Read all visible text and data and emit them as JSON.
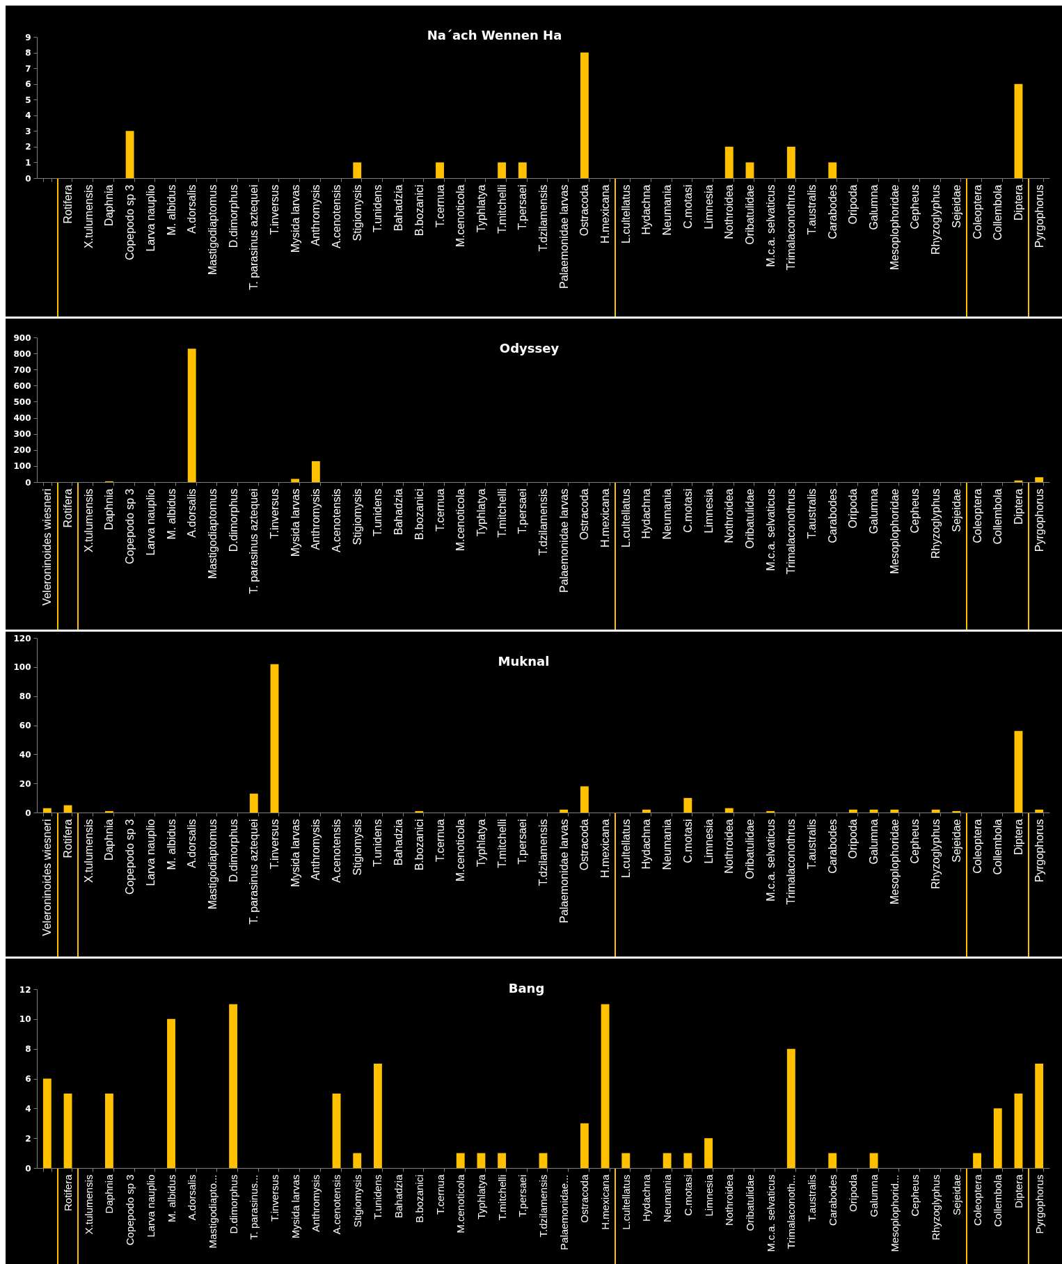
{
  "chart_data": [
    {
      "type": "bar",
      "title": "Na´ach Wennen Ha",
      "categories": [
        null,
        "Rotifera",
        "X.tulumensis",
        "Daphnia",
        "Copepodo sp 3",
        "Larva nauplio",
        "M. albidus",
        "A.dorsalis",
        "Mastigodiaptomus",
        "D.dimorphus",
        "T. parasinus aztequei",
        "T.inversus",
        "Mysida larvas",
        "Anthromysis",
        "A.cenotensis",
        "Stigiomysis",
        "T.unidens",
        "Bahadzia",
        "B.bozanici",
        "T.cernua",
        "M.cenoticola",
        "Typhlatya",
        "T.mitchelli",
        "T.persaei",
        "T.dzilamensis",
        "Palaemonidae larvas",
        "Ostracoda",
        "H.mexicana",
        "L.cultellatus",
        "Hydachna",
        "Neumania",
        "C.motasi",
        "Limnesia",
        "Nothroidea",
        "Oribatulidae",
        "M.c.a. selvaticus",
        "Trimalaconothrus",
        "T.australis",
        "Carabodes",
        "Oripoda",
        "Galumna",
        "Mesoplophoridae",
        "Cepheus",
        "Rhyzoglyphus",
        "Sejeidae",
        "Coleoptera",
        "Collembola",
        "Diptera",
        "Pyrgophorus"
      ],
      "values": [
        0,
        0,
        0,
        0,
        3,
        0,
        0,
        0,
        0,
        0,
        0,
        0,
        0,
        0,
        0,
        1,
        0,
        0,
        0,
        1,
        0,
        0,
        1,
        1,
        0,
        0,
        8,
        0,
        0,
        0,
        0,
        0,
        0,
        2,
        1,
        0,
        2,
        0,
        1,
        0,
        0,
        0,
        0,
        0,
        0,
        0,
        0,
        6,
        0
      ],
      "color": "#ffc000",
      "ylim": [
        0,
        9
      ],
      "yticks": [
        0,
        1,
        2,
        3,
        4,
        5,
        6,
        7,
        8,
        9
      ]
    },
    {
      "type": "bar",
      "title": "Odyssey",
      "categories": [
        "Veleroninoides wiesneri",
        "Rotifera",
        "X.tulumensis",
        "Daphnia",
        "Copepodo sp 3",
        "Larva nauplio",
        "M. albidus",
        "A.dorsalis",
        "Mastigodiaptomus",
        "D.dimorphus",
        "T. parasinus aztequei",
        "T.inversus",
        "Mysida larvas",
        "Anthromysis",
        "A.cenotensis",
        "Stigiomysis",
        "T.unidens",
        "Bahadzia",
        "B.bozanici",
        "T.cernua",
        "M.cenoticola",
        "Typhlatya",
        "T.mitchelli",
        "T.persaei",
        "T.dzilamensis",
        "Palaemonidae larvas",
        "Ostracoda",
        "H.mexicana",
        "L.cultellatus",
        "Hydachna",
        "Neumania",
        "C.motasi",
        "Limnesia",
        "Nothroidea",
        "Oribatulidae",
        "M.c.a. selvaticus",
        "Trimalaconothrus",
        "T.australis",
        "Carabodes",
        "Oripoda",
        "Galumna",
        "Mesoplophoridae",
        "Cepheus",
        "Rhyzoglyphus",
        "Sejeidae",
        "Coleoptera",
        "Collembola",
        "Diptera",
        "Pyrgophorus"
      ],
      "values": [
        0,
        0,
        0,
        5,
        0,
        0,
        0,
        830,
        0,
        0,
        0,
        0,
        20,
        130,
        0,
        0,
        0,
        0,
        0,
        0,
        0,
        0,
        0,
        0,
        0,
        0,
        0,
        0,
        0,
        0,
        0,
        0,
        0,
        0,
        0,
        0,
        0,
        0,
        0,
        0,
        0,
        0,
        0,
        0,
        0,
        0,
        0,
        10,
        30
      ],
      "color": "#ffc000",
      "ylim": [
        0,
        900
      ],
      "yticks": [
        0,
        100,
        200,
        300,
        400,
        500,
        600,
        700,
        800,
        900
      ]
    },
    {
      "type": "bar",
      "title": "Muknal",
      "categories": [
        "Veleroninoides wiesneri",
        "Rotifera",
        "X.tulumensis",
        "Daphnia",
        "Copepodo sp 3",
        "Larva nauplio",
        "M. albidus",
        "A.dorsalis",
        "Mastigodiaptomus",
        "D.dimorphus",
        "T. parasinus aztequei",
        "T.inversus",
        "Mysida larvas",
        "Anthromysis",
        "A.cenotensis",
        "Stigiomysis",
        "T.unidens",
        "Bahadzia",
        "B.bozanici",
        "T.cernua",
        "M.cenoticola",
        "Typhlatya",
        "T.mitchelli",
        "T.persaei",
        "T.dzilamensis",
        "Palaemonidae larvas",
        "Ostracoda",
        "H.mexicana",
        "L.cultellatus",
        "Hydachna",
        "Neumania",
        "C.motasi",
        "Limnesia",
        "Nothroidea",
        "Oribatulidae",
        "M.c.a. selvaticus",
        "Trimalaconothrus",
        "T.australis",
        "Carabodes",
        "Oripoda",
        "Galumna",
        "Mesoplophoridae",
        "Cepheus",
        "Rhyzoglyphus",
        "Sejeidae",
        "Coleoptera",
        "Collembola",
        "Diptera",
        "Pyrgophorus"
      ],
      "values": [
        3,
        5,
        0,
        1,
        0,
        0,
        0,
        0,
        0,
        0,
        13,
        102,
        0,
        0,
        0,
        0,
        0,
        0,
        1,
        0,
        0,
        0,
        0,
        0,
        0,
        2,
        18,
        0,
        0,
        2,
        0,
        10,
        0,
        3,
        0,
        1,
        0,
        0,
        0,
        2,
        2,
        2,
        0,
        2,
        1,
        0,
        0,
        56,
        2
      ],
      "color": "#ffc000",
      "ylim": [
        0,
        120
      ],
      "yticks": [
        0,
        20,
        40,
        60,
        80,
        100,
        120
      ]
    },
    {
      "type": "bar",
      "title": "Bang",
      "categories": [
        null,
        "Rotifera",
        "X.tulumensis",
        "Daphnia",
        "Copepodo sp 3",
        "Larva nauplio",
        "M. albidus",
        "A.dorsalis",
        "Mastigodiapto...",
        "D.dimorphus",
        "T. parasinus...",
        "T.inversus",
        "Mysida larvas",
        "Anthromysis",
        "A.cenotensis",
        "Stigiomysis",
        "T.unidens",
        "Bahadzia",
        "B.bozanici",
        "T.cernua",
        "M.cenoticola",
        "Typhlatya",
        "T.mitchelli",
        "T.persaei",
        "T.dzilamensis",
        "Palaemonidae...",
        "Ostracoda",
        "H.mexicana",
        "L.cultellatus",
        "Hydachna",
        "Neumania",
        "C.motasi",
        "Limnesia",
        "Nothroidea",
        "Oribatulidae",
        "M.c.a. selvaticus",
        "Trimalaconoth...",
        "T.australis",
        "Carabodes",
        "Oripoda",
        "Galumna",
        "Mesoplophorid...",
        "Cepheus",
        "Rhyzoglyphus",
        "Sejeidae",
        "Coleoptera",
        "Collembola",
        "Diptera",
        "Pyrgophorus"
      ],
      "values": [
        6,
        5,
        0,
        5,
        0,
        0,
        10,
        0,
        0,
        11,
        0,
        0,
        0,
        0,
        5,
        1,
        7,
        0,
        0,
        0,
        1,
        1,
        1,
        0,
        1,
        0,
        3,
        11,
        1,
        0,
        1,
        1,
        2,
        0,
        0,
        0,
        8,
        0,
        1,
        0,
        1,
        0,
        0,
        0,
        0,
        1,
        4,
        5,
        7
      ],
      "color": "#ffc000",
      "ylim": [
        0,
        12
      ],
      "yticks": [
        0,
        2,
        4,
        6,
        8,
        10,
        12
      ]
    }
  ]
}
